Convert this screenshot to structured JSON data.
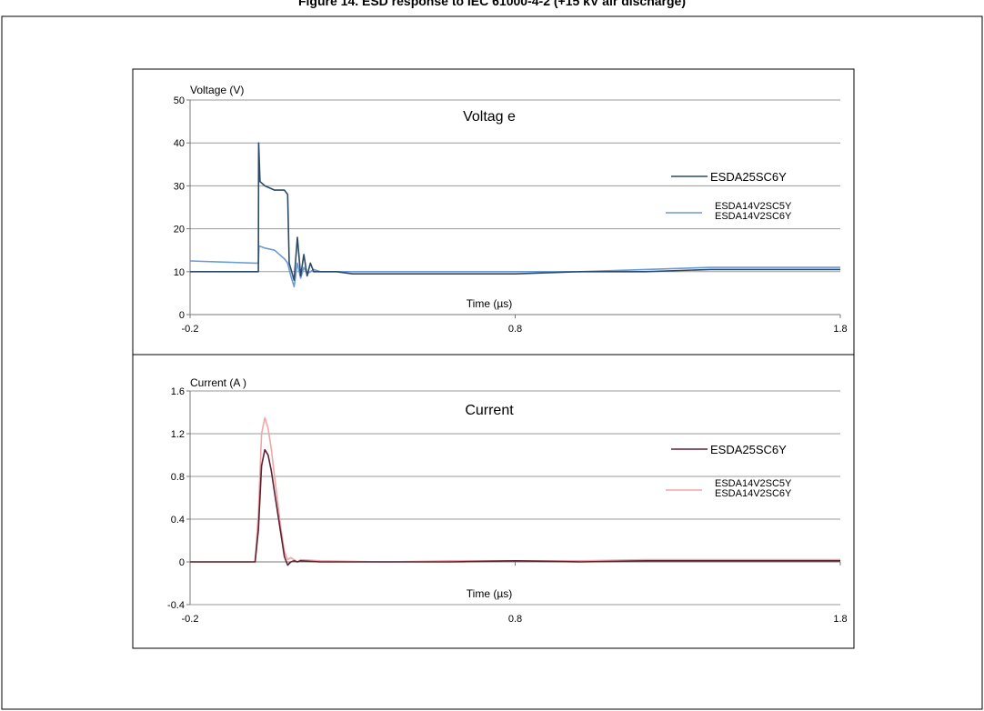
{
  "figure": {
    "caption": "Figure 14. ESD response to IEC 61000-4-2 (+15 kV air discharge)"
  },
  "colors": {
    "voltage_esda25": "#2c4a66",
    "voltage_esda14": "#6b9bd6",
    "current_esda25": "#5c2233",
    "current_esda14": "#f0a6a6",
    "grid": "#9a9a9a"
  },
  "chart_data": [
    {
      "type": "line",
      "title": "Voltag e",
      "xlabel": "Time (µs)",
      "ylabel": "Voltage (V)",
      "xlim": [
        -0.2,
        1.8
      ],
      "ylim": [
        0,
        50
      ],
      "x_ticks": [
        "-0.2",
        "0.8",
        "1.8"
      ],
      "x_tick_values": [
        -0.2,
        0.8,
        1.8
      ],
      "y_ticks": [
        "0",
        "10",
        "20",
        "30",
        "40",
        "50"
      ],
      "y_tick_values": [
        0,
        10,
        20,
        30,
        40,
        50
      ],
      "grid": true,
      "legend_position": "right",
      "series": [
        {
          "name": "ESDA25SC6Y",
          "x": [
            -0.2,
            0.0,
            0.01,
            0.011,
            0.015,
            0.03,
            0.06,
            0.09,
            0.1,
            0.105,
            0.12,
            0.13,
            0.14,
            0.15,
            0.16,
            0.17,
            0.18,
            0.2,
            0.25,
            0.3,
            0.4,
            0.6,
            0.8,
            1.0,
            1.2,
            1.4,
            1.6,
            1.8
          ],
          "y": [
            10,
            10,
            10,
            40,
            31,
            30,
            29,
            29,
            28,
            12,
            8,
            18,
            9,
            14,
            9,
            12,
            10,
            10,
            10,
            9.5,
            9.5,
            9.5,
            9.5,
            10,
            10,
            10.5,
            10.5,
            10.5
          ]
        },
        {
          "name": "ESDA14V2SC5Y\nESDA14V2SC6Y",
          "x": [
            -0.2,
            0.0,
            0.01,
            0.012,
            0.03,
            0.06,
            0.09,
            0.1,
            0.11,
            0.12,
            0.13,
            0.14,
            0.15,
            0.16,
            0.18,
            0.2,
            0.25,
            0.3,
            0.4,
            0.6,
            0.8,
            1.0,
            1.2,
            1.4,
            1.6,
            1.8
          ],
          "y": [
            12.5,
            12,
            12,
            16,
            15.5,
            15,
            13,
            12,
            9,
            6.5,
            12,
            8.5,
            11,
            9.5,
            10.5,
            10,
            10,
            10,
            10,
            10,
            10,
            10,
            10.5,
            11,
            11,
            11
          ]
        }
      ]
    },
    {
      "type": "line",
      "title": "Current",
      "xlabel": "Time (µs)",
      "ylabel": "Current (A )",
      "xlim": [
        -0.2,
        1.8
      ],
      "ylim": [
        -0.4,
        1.6
      ],
      "x_ticks": [
        "-0.2",
        "0.8",
        "1.8"
      ],
      "x_tick_values": [
        -0.2,
        0.8,
        1.8
      ],
      "y_ticks": [
        "-0.4",
        "0",
        "0.4",
        "0.8",
        "1.2",
        "1.6"
      ],
      "y_tick_values": [
        -0.4,
        0,
        0.4,
        0.8,
        1.2,
        1.6
      ],
      "grid": true,
      "legend_position": "right",
      "series": [
        {
          "name": "ESDA25SC6Y",
          "x": [
            -0.2,
            0.0,
            0.01,
            0.02,
            0.03,
            0.04,
            0.05,
            0.06,
            0.07,
            0.08,
            0.09,
            0.1,
            0.11,
            0.12,
            0.13,
            0.14,
            0.2,
            0.4,
            0.6,
            0.8,
            1.0,
            1.2,
            1.4,
            1.6,
            1.8
          ],
          "y": [
            0,
            0,
            0.3,
            0.9,
            1.05,
            1.0,
            0.85,
            0.65,
            0.45,
            0.25,
            0.05,
            -0.03,
            0.0,
            0.01,
            0.0,
            0.01,
            0.0,
            0.0,
            0.0,
            0.01,
            0.0,
            0.01,
            0.01,
            0.01,
            0.01
          ]
        },
        {
          "name": "ESDA14V2SC5Y\nESDA14V2SC6Y",
          "x": [
            -0.2,
            0.0,
            0.01,
            0.02,
            0.03,
            0.04,
            0.05,
            0.06,
            0.07,
            0.08,
            0.09,
            0.1,
            0.11,
            0.12,
            0.13,
            0.14,
            0.2,
            0.4,
            0.6,
            0.8,
            1.0,
            1.2,
            1.4,
            1.6,
            1.8
          ],
          "y": [
            0,
            0,
            0.45,
            1.2,
            1.35,
            1.25,
            1.05,
            0.8,
            0.55,
            0.3,
            0.1,
            0.02,
            0.04,
            0.02,
            0.0,
            0.02,
            0.01,
            0.0,
            0.01,
            0.01,
            0.01,
            0.02,
            0.02,
            0.02,
            0.02
          ]
        }
      ]
    }
  ]
}
